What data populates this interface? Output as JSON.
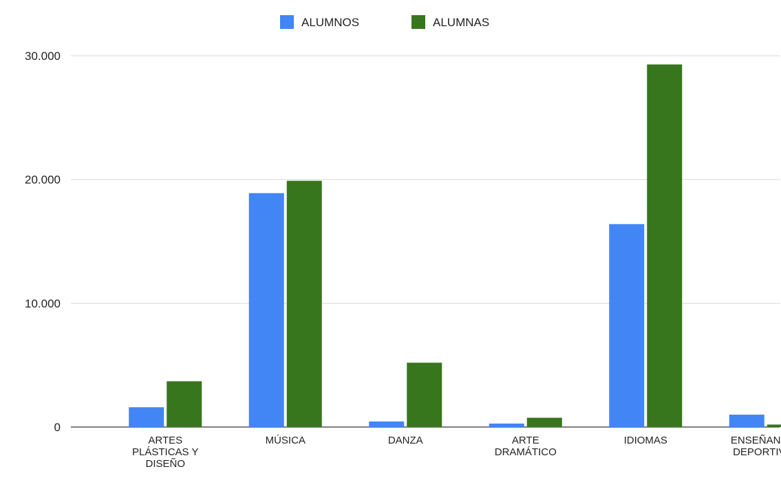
{
  "chart_data": {
    "type": "bar",
    "categories": [
      [
        "ARTES",
        "PLÁSTICAS Y",
        "DISEÑO"
      ],
      [
        "MÚSICA"
      ],
      [
        "DANZA"
      ],
      [
        "ARTE",
        "DRAMÁTICO"
      ],
      [
        "IDIOMAS"
      ],
      [
        "ENSEÑANZAS",
        "DEPORTIVAS"
      ]
    ],
    "series": [
      {
        "name": "ALUMNOS",
        "color": "#4285F4",
        "values": [
          1600,
          18900,
          450,
          280,
          16400,
          1000
        ]
      },
      {
        "name": "ALUMNAS",
        "color": "#38761D",
        "values": [
          3700,
          19900,
          5200,
          750,
          29300,
          200
        ]
      }
    ],
    "ylim": [
      0,
      30000
    ],
    "yticks": [
      0,
      10000,
      20000,
      30000
    ],
    "ytick_labels": [
      "0",
      "10.000",
      "20.000",
      "30.000"
    ],
    "grid": true,
    "legend_position": "top-center"
  }
}
